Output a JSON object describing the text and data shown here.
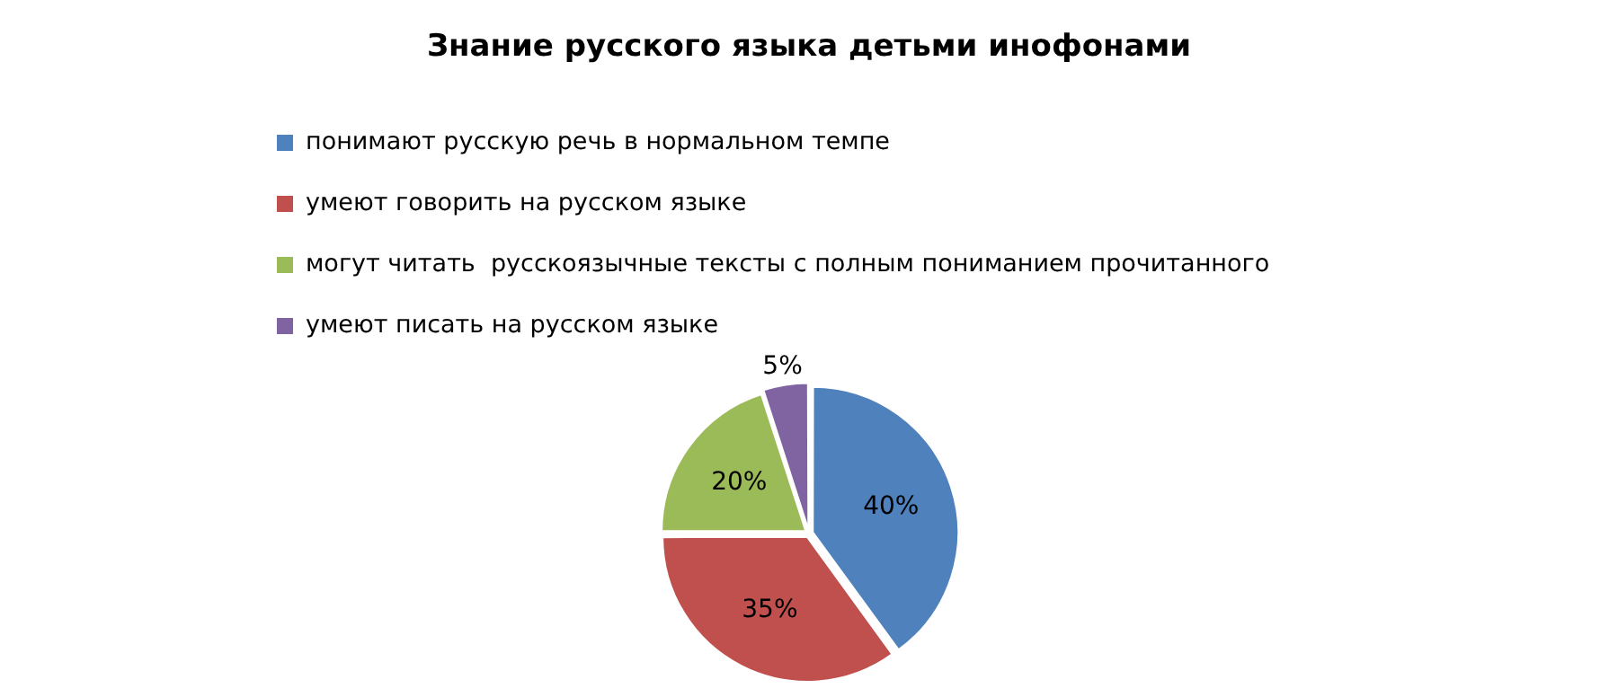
{
  "chart_data": {
    "type": "pie",
    "title": "Знание русского языка детьми инофонами",
    "categories": [
      "понимают русскую речь в нормальном темпе",
      "умеют говорить на русском языке",
      "могут читать  русскоязычные тексты с полным пониманием прочитанного",
      "умеют писать на русском языке"
    ],
    "values": [
      40,
      35,
      20,
      5
    ],
    "colors": [
      "#4f81bd",
      "#c0504d",
      "#9bbb59",
      "#8064a2"
    ],
    "value_labels": [
      "40%",
      "35%",
      "20%",
      "5%"
    ],
    "legend": "top"
  }
}
